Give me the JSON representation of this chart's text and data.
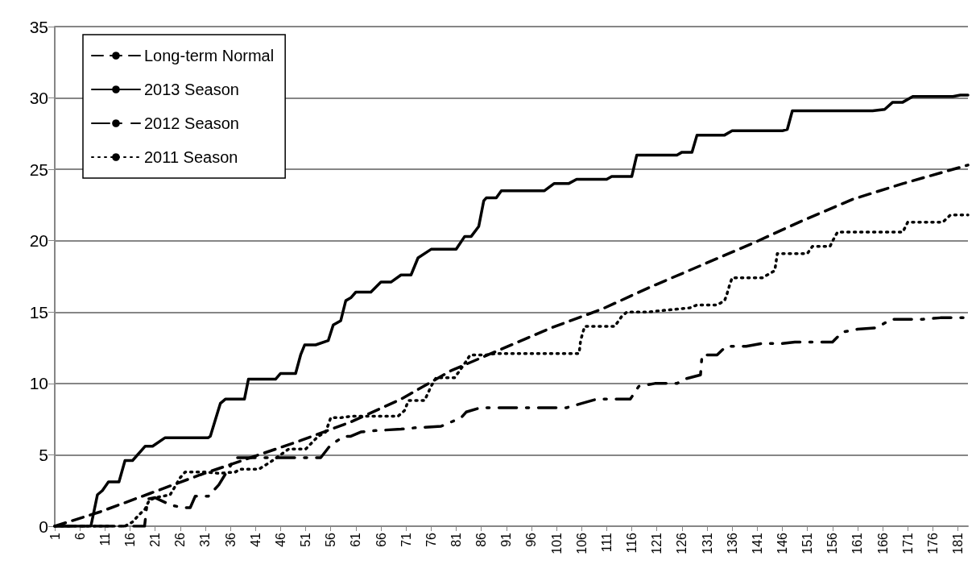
{
  "chart_data": {
    "type": "line",
    "xlim": [
      1,
      183
    ],
    "xticks": [
      1,
      6,
      11,
      16,
      21,
      26,
      31,
      36,
      41,
      46,
      51,
      56,
      61,
      66,
      71,
      76,
      81,
      86,
      91,
      96,
      101,
      106,
      111,
      116,
      121,
      126,
      131,
      136,
      141,
      146,
      151,
      156,
      161,
      166,
      171,
      176,
      181
    ],
    "ylim": [
      0,
      35
    ],
    "yticks": [
      0,
      5,
      10,
      15,
      20,
      25,
      30,
      35
    ],
    "grid": "y",
    "legend": "top left",
    "marker": "none",
    "series": [
      {
        "name": "Long-term Normal",
        "color": "#000000",
        "line_style": "dashed",
        "x": [
          1,
          10,
          20,
          30,
          40,
          50,
          60,
          70,
          80,
          90,
          100,
          110,
          120,
          130,
          140,
          150,
          160,
          170,
          183
        ],
        "values": [
          0,
          1,
          2.3,
          3.6,
          4.8,
          6,
          7.3,
          8.9,
          10.9,
          12.4,
          13.9,
          15.2,
          16.8,
          18.3,
          19.8,
          21.4,
          22.9,
          24,
          25.3
        ]
      },
      {
        "name": "2013 Season",
        "color": "#000000",
        "line_style": "solid",
        "x": [
          1,
          8.2,
          9.5,
          10.5,
          11.7,
          13.8,
          15,
          16.5,
          19,
          20.5,
          23,
          31.6,
          32,
          34,
          35,
          38.8,
          39.6,
          45,
          46,
          49,
          50,
          50.8,
          53,
          55.5,
          56.5,
          58,
          59,
          60,
          61,
          64,
          66,
          68,
          70,
          72,
          73.4,
          76,
          81,
          82.7,
          84,
          85.5,
          86.5,
          87,
          89,
          90,
          98.6,
          100.5,
          103.4,
          105,
          111,
          112,
          116,
          117,
          125,
          126,
          128,
          129,
          134.5,
          136,
          146,
          147,
          148,
          164,
          166.4,
          168,
          170,
          172,
          180,
          181.5,
          183
        ],
        "values": [
          0,
          0,
          2.2,
          2.5,
          3.1,
          3.1,
          4.6,
          4.6,
          5.6,
          5.6,
          6.2,
          6.2,
          6.3,
          8.6,
          8.9,
          8.9,
          10.3,
          10.3,
          10.7,
          10.7,
          12,
          12.7,
          12.7,
          13,
          14.1,
          14.4,
          15.8,
          16,
          16.4,
          16.4,
          17.1,
          17.1,
          17.6,
          17.6,
          18.8,
          19.4,
          19.4,
          20.3,
          20.3,
          21,
          22.8,
          23,
          23,
          23.5,
          23.5,
          24,
          24,
          24.3,
          24.3,
          24.5,
          24.5,
          26,
          26,
          26.2,
          26.2,
          27.4,
          27.4,
          27.7,
          27.7,
          27.8,
          29.1,
          29.1,
          29.2,
          29.7,
          29.7,
          30.1,
          30.1,
          30.2,
          30.2
        ]
      },
      {
        "name": "2012 Season",
        "color": "#000000",
        "line_style": "dashdot",
        "x": [
          1,
          18.9,
          19.5,
          21,
          24,
          26.4,
          28,
          29,
          31.6,
          33.7,
          37,
          40.7,
          47.6,
          54,
          56,
          58.7,
          60,
          62,
          65,
          70,
          73,
          78,
          80,
          82,
          83,
          85.8,
          89,
          92.7,
          96,
          103,
          106,
          109,
          115.7,
          117.4,
          120.6,
          125,
          126.5,
          129.7,
          130,
          133,
          134.8,
          138.8,
          142,
          146,
          148.5,
          156,
          158,
          161,
          164.8,
          167.7,
          174,
          177.5,
          183
        ],
        "values": [
          0,
          0,
          1.9,
          2,
          1.5,
          1.3,
          1.3,
          2.1,
          2.1,
          2.9,
          4.8,
          4.8,
          4.8,
          4.8,
          5.7,
          6.3,
          6.3,
          6.6,
          6.7,
          6.8,
          6.9,
          7,
          7.3,
          7.6,
          8,
          8.3,
          8.3,
          8.3,
          8.3,
          8.3,
          8.6,
          8.9,
          8.9,
          9.8,
          10,
          10,
          10.3,
          10.6,
          12,
          12,
          12.6,
          12.6,
          12.8,
          12.8,
          12.9,
          12.9,
          13.6,
          13.8,
          13.9,
          14.5,
          14.5,
          14.6,
          14.6
        ]
      },
      {
        "name": "2011 Season",
        "color": "#000000",
        "line_style": "dotted",
        "x": [
          1,
          15,
          16.5,
          17.8,
          19,
          19.8,
          21,
          24,
          26,
          27,
          31,
          33.7,
          37,
          38,
          41.7,
          44,
          47.6,
          51,
          53.5,
          55,
          56,
          58,
          60,
          69.4,
          70.7,
          71.5,
          74.7,
          76,
          77,
          80.7,
          82.7,
          83.8,
          87,
          89,
          105.5,
          105.8,
          106.6,
          112.6,
          114,
          115,
          119,
          127.6,
          129,
          133,
          134.5,
          135,
          135.5,
          136,
          142,
          144.5,
          145,
          151,
          152,
          155.5,
          156.5,
          157,
          170,
          171,
          178,
          179.5,
          183
        ],
        "values": [
          0,
          0,
          0.3,
          0.8,
          1.2,
          1.8,
          2,
          2.2,
          3.4,
          3.8,
          3.8,
          3.7,
          3.8,
          4,
          4,
          4.5,
          5.4,
          5.4,
          6.3,
          6.6,
          7.6,
          7.6,
          7.7,
          7.7,
          8.1,
          8.8,
          8.8,
          9.8,
          10.4,
          10.4,
          11.4,
          12,
          12,
          12.1,
          12.1,
          13,
          14,
          14,
          14.7,
          15,
          15,
          15.3,
          15.5,
          15.5,
          15.8,
          16.3,
          16.9,
          17.4,
          17.4,
          17.9,
          19.1,
          19.1,
          19.6,
          19.6,
          20.3,
          20.6,
          20.6,
          21.3,
          21.3,
          21.8,
          21.8
        ]
      }
    ]
  }
}
